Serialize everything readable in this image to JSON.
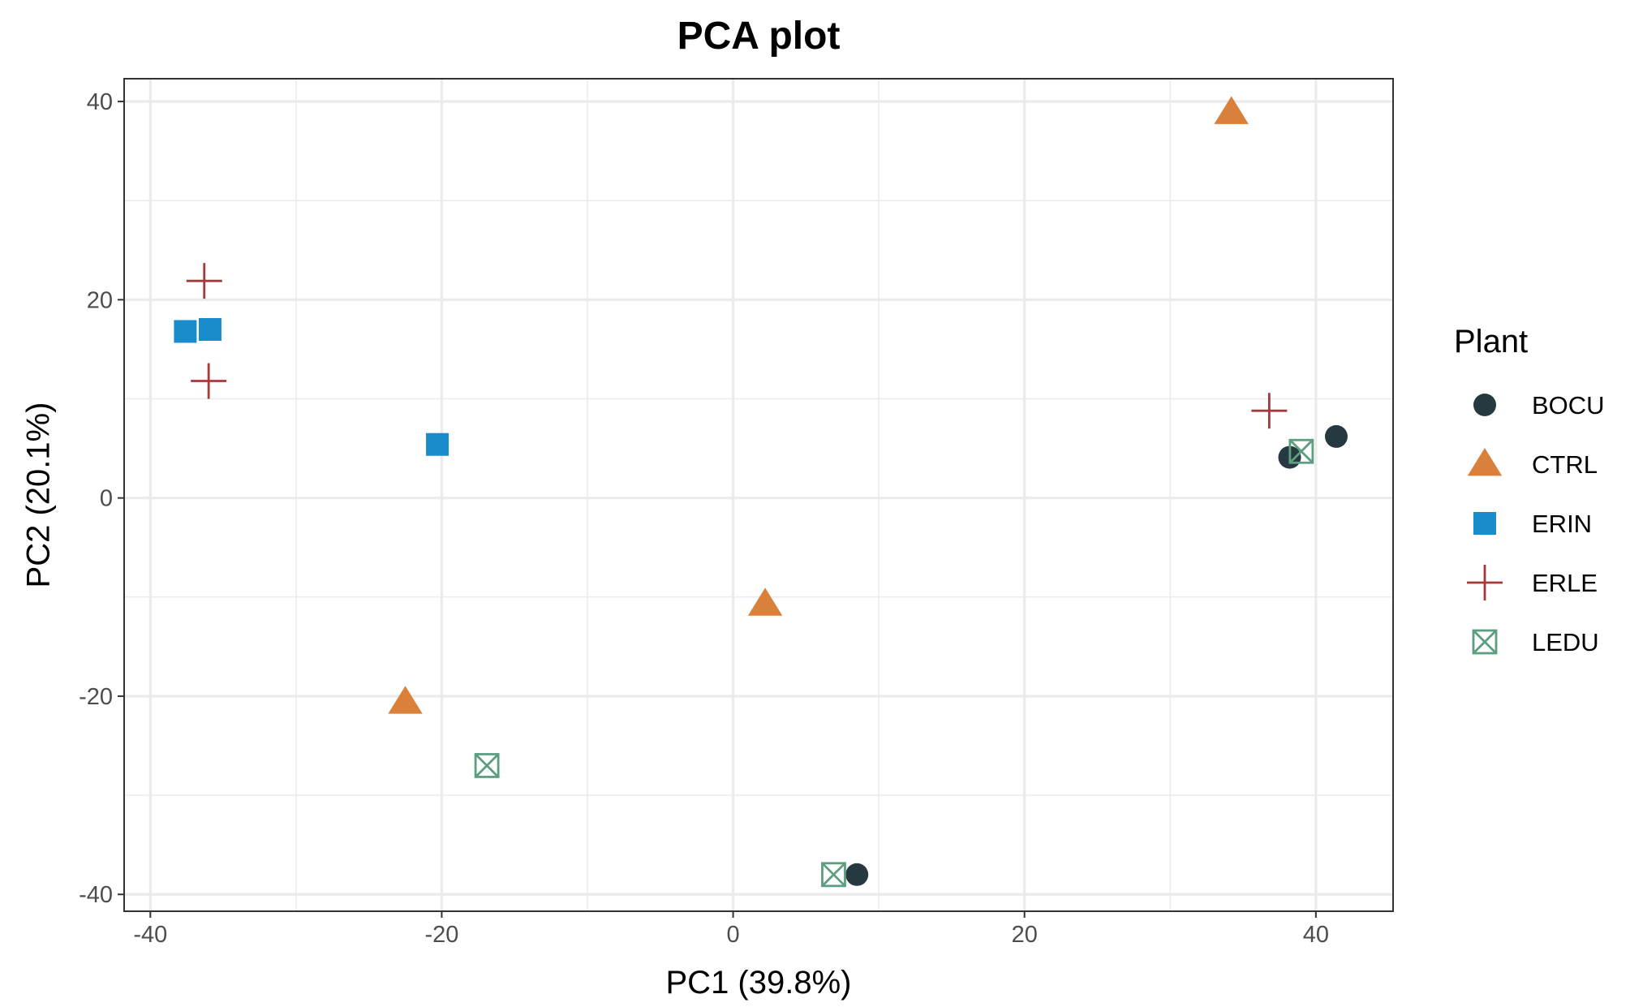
{
  "chart_data": {
    "type": "scatter",
    "title": "PCA plot",
    "xlabel": "PC1 (39.8%)",
    "ylabel": "PC2 (20.1%)",
    "xlim": [
      -41.8,
      45.3
    ],
    "ylim": [
      -41.7,
      42.3
    ],
    "x_ticks": [
      -40,
      -20,
      0,
      20,
      40
    ],
    "y_ticks": [
      -40,
      -20,
      0,
      20,
      40
    ],
    "x_tick_labels": [
      "-40",
      "-20",
      "0",
      "20",
      "40"
    ],
    "y_tick_labels": [
      "-40",
      "-20",
      "0",
      "20",
      "40"
    ],
    "grid": true,
    "legend": {
      "title": "Plant",
      "position": "right"
    },
    "series": [
      {
        "name": "BOCU",
        "shape": "circle",
        "color": "#263840",
        "points": [
          [
            38.2,
            4.1
          ],
          [
            41.4,
            6.2
          ],
          [
            8.5,
            -38.0
          ]
        ]
      },
      {
        "name": "CTRL",
        "shape": "triangle",
        "color": "#D9803A",
        "points": [
          [
            34.2,
            38.9
          ],
          [
            2.2,
            -10.7
          ],
          [
            -22.5,
            -20.6
          ]
        ]
      },
      {
        "name": "ERIN",
        "shape": "square",
        "color": "#1A8BCB",
        "points": [
          [
            -37.6,
            16.8
          ],
          [
            -35.9,
            17.0
          ],
          [
            -20.3,
            5.4
          ]
        ]
      },
      {
        "name": "ERLE",
        "shape": "plus",
        "color": "#A33A3A",
        "points": [
          [
            -36.3,
            21.9
          ],
          [
            -36.0,
            11.8
          ],
          [
            36.8,
            8.8
          ]
        ]
      },
      {
        "name": "LEDU",
        "shape": "boxcross",
        "color": "#5E9E80",
        "points": [
          [
            -16.9,
            -27.0
          ],
          [
            39.0,
            4.7
          ],
          [
            6.9,
            -38.0
          ]
        ]
      }
    ]
  }
}
